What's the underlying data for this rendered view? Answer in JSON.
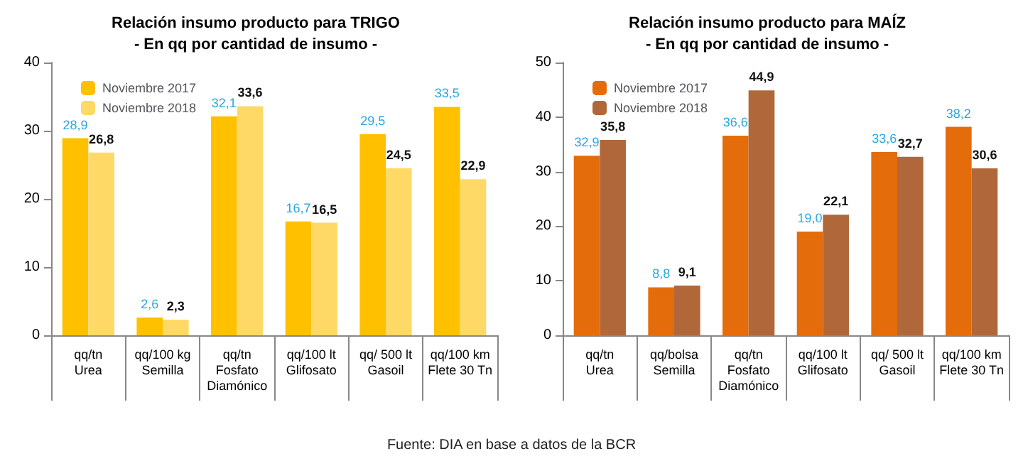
{
  "chart_data": [
    {
      "type": "bar",
      "title": "Relación insumo producto para TRIGO",
      "subtitle": "- En qq por cantidad de insumo -",
      "categories": [
        "qq/tn\nUrea",
        "qq/100 kg\nSemilla",
        "qq/tn\nFosfato\nDiamónico",
        "qq/100 lt\nGlifosato",
        "qq/ 500 lt\nGasoil",
        "qq/100 km\nFlete 30 Tn"
      ],
      "series": [
        {
          "name": "Noviembre 2017",
          "color": "#ffc000",
          "values": [
            28.9,
            2.6,
            32.1,
            16.7,
            29.5,
            33.5
          ],
          "value_labels": [
            "28,9",
            "2,6",
            "32,1",
            "16,7",
            "29,5",
            "33,5"
          ]
        },
        {
          "name": "Noviembre 2018",
          "color": "#ffd966",
          "values": [
            26.8,
            2.3,
            33.6,
            16.5,
            24.5,
            22.9
          ],
          "value_labels": [
            "26,8",
            "2,3",
            "33,6",
            "16,5",
            "24,5",
            "22,9"
          ]
        }
      ],
      "ylim": [
        0,
        40
      ],
      "yticks": [
        0,
        10,
        20,
        30,
        40
      ],
      "grid": false,
      "legend": "top left",
      "annotations": [
        "Fuente: DIA en base a datos de la BCR"
      ]
    },
    {
      "type": "bar",
      "title": "Relación insumo producto para MAÍZ",
      "subtitle": "- En qq por cantidad de insumo -",
      "categories": [
        "qq/tn\nUrea",
        "qq/bolsa\nSemilla",
        "qq/tn\nFosfato\nDiamónico",
        "qq/100 lt\nGlifosato",
        "qq/ 500 lt\nGasoil",
        "qq/100 km\nFlete 30 Tn"
      ],
      "series": [
        {
          "name": "Noviembre 2017",
          "color": "#e46c0a",
          "values": [
            32.9,
            8.8,
            36.6,
            19.0,
            33.6,
            38.2
          ],
          "value_labels": [
            "32,9",
            "8,8",
            "36,6",
            "19,0",
            "33,6",
            "38,2"
          ]
        },
        {
          "name": "Noviembre 2018",
          "color": "#b0683a",
          "values": [
            35.8,
            9.1,
            44.9,
            22.1,
            32.7,
            30.6
          ],
          "value_labels": [
            "35,8",
            "9,1",
            "44,9",
            "22,1",
            "32,7",
            "30,6"
          ]
        }
      ],
      "ylim": [
        0,
        50
      ],
      "yticks": [
        0,
        10,
        20,
        30,
        40,
        50
      ],
      "grid": false,
      "legend": "top left"
    }
  ]
}
